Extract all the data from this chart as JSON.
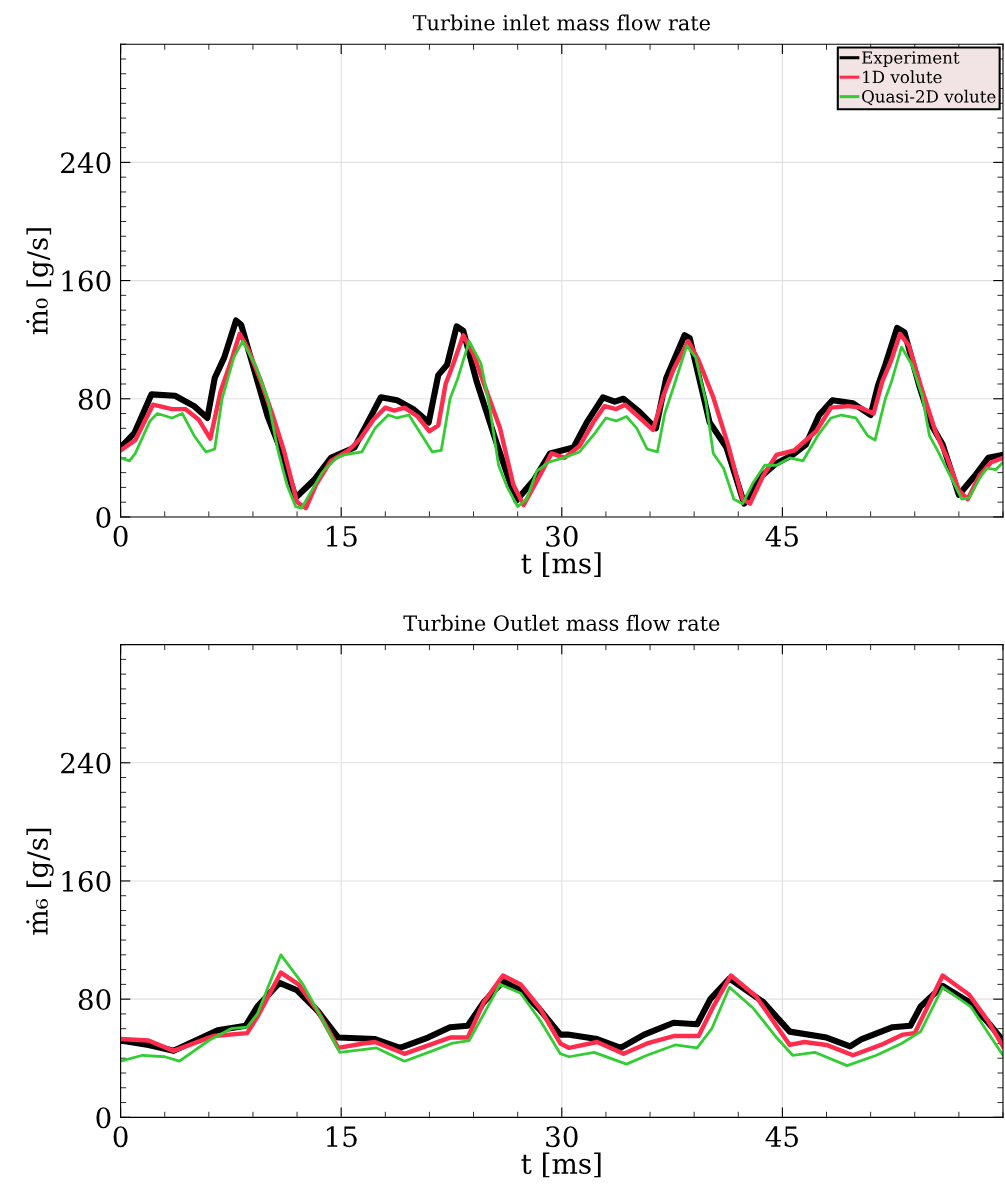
{
  "chart_data": [
    {
      "type": "line",
      "title": "Turbine inlet mass flow rate",
      "xlabel": "t [ms]",
      "ylabel": "ṁ₀ [g/s]",
      "xlim": [
        0,
        60
      ],
      "ylim": [
        0,
        320
      ],
      "xticks": [
        0,
        15,
        30,
        45
      ],
      "yticks": [
        0,
        80,
        160,
        240
      ],
      "grid": true,
      "legend": "top right",
      "line_style": "solid",
      "marker": "none",
      "series": [
        {
          "name": "Experiment",
          "color": "#000000",
          "x": [
            0,
            0.95,
            2.1,
            3.7,
            5.0,
            5.9,
            6.4,
            7.05,
            7.85,
            8.2,
            9.1,
            10.0,
            10.9,
            11.9,
            13.15,
            14.3,
            15.9,
            16.8,
            17.7,
            18.8,
            19.9,
            20.95,
            21.6,
            22.2,
            22.85,
            23.3,
            24.2,
            25.6,
            26.9,
            28.1,
            29.2,
            30.8,
            31.7,
            32.8,
            33.6,
            34.2,
            35.3,
            36.4,
            37.1,
            38.35,
            38.7,
            40.05,
            41.2,
            42.4,
            43.4,
            44.55,
            45.7,
            46.6,
            47.5,
            48.4,
            49.8,
            51.0,
            51.5,
            52.0,
            52.8,
            53.3,
            54.3,
            55.2,
            55.9,
            57.0,
            58.1,
            59.0,
            60
          ],
          "values": [
            47,
            57,
            83,
            82,
            75,
            67,
            94,
            108,
            133,
            130,
            99,
            68,
            45,
            13,
            25,
            40,
            47,
            64,
            81,
            79,
            73,
            64,
            96,
            103,
            129,
            126,
            92,
            49,
            11,
            25,
            43,
            47,
            64,
            81,
            78,
            80,
            71,
            60,
            94,
            123,
            121,
            64,
            47,
            9,
            26,
            36,
            42,
            49,
            69,
            79,
            77,
            69,
            89,
            103,
            128,
            125,
            89,
            61,
            49,
            15,
            28,
            40,
            42
          ]
        },
        {
          "name": "1D volute",
          "color": "#ff2d4d",
          "x": [
            0,
            1.0,
            2.2,
            3.5,
            4.4,
            5.3,
            6.1,
            6.8,
            7.5,
            8.1,
            8.7,
            9.5,
            10.3,
            11.1,
            12.0,
            12.6,
            13.3,
            14.3,
            15.5,
            16.3,
            17.2,
            18.0,
            18.6,
            19.3,
            20.2,
            21.0,
            21.6,
            22.1,
            22.6,
            23.3,
            24.0,
            25.0,
            25.8,
            26.7,
            27.4,
            28.4,
            29.3,
            30.2,
            31.2,
            32.2,
            32.9,
            33.7,
            34.3,
            35.2,
            36.2,
            36.9,
            37.6,
            38.6,
            39.3,
            40.3,
            41.3,
            42.3,
            42.8,
            43.7,
            44.6,
            45.8,
            47.3,
            48.3,
            49.5,
            50.3,
            51.2,
            51.8,
            52.4,
            53.0,
            53.6,
            54.4,
            55.4,
            56.2,
            57.0,
            57.6,
            58.4,
            59.2,
            60
          ],
          "values": [
            45,
            52,
            76,
            73,
            73,
            66,
            53,
            85,
            105,
            124,
            113,
            93,
            70,
            45,
            10,
            6,
            22,
            38,
            45,
            53,
            66,
            74,
            72,
            74,
            68,
            58,
            62,
            90,
            103,
            123,
            110,
            82,
            60,
            22,
            8,
            26,
            43,
            40,
            48,
            65,
            75,
            73,
            76,
            68,
            59,
            82,
            100,
            119,
            106,
            81,
            49,
            12,
            9,
            28,
            42,
            45,
            58,
            74,
            75,
            74,
            70,
            92,
            106,
            124,
            116,
            89,
            58,
            40,
            18,
            12,
            28,
            37,
            40
          ]
        },
        {
          "name": "Quasi-2D volute",
          "color": "#33cc33",
          "x": [
            0,
            0.6,
            1.0,
            2.0,
            2.5,
            3.5,
            4.2,
            5.0,
            5.8,
            6.4,
            6.9,
            7.7,
            8.3,
            9.2,
            10.0,
            10.7,
            11.3,
            11.9,
            12.3,
            13.0,
            13.7,
            14.7,
            15.2,
            16.4,
            17.3,
            18.2,
            18.8,
            19.6,
            20.5,
            21.2,
            21.8,
            22.4,
            22.9,
            23.7,
            24.5,
            25.1,
            25.7,
            26.3,
            27.0,
            27.6,
            28.3,
            29.1,
            30.1,
            31.2,
            32.2,
            33.0,
            33.7,
            34.4,
            35.1,
            35.8,
            36.5,
            37.0,
            37.6,
            38.5,
            39.1,
            39.8,
            40.3,
            41.0,
            41.7,
            42.3,
            43.0,
            43.8,
            44.6,
            45.5,
            46.4,
            47.4,
            48.3,
            49.0,
            50.0,
            50.8,
            51.3,
            52.0,
            52.4,
            53.1,
            53.8,
            54.5,
            55.0,
            55.6,
            56.3,
            57.2,
            57.7,
            58.4,
            58.9,
            59.5,
            60
          ],
          "values": [
            40,
            38,
            43,
            65,
            70,
            67,
            70,
            55,
            44,
            46,
            80,
            108,
            119,
            102,
            80,
            45,
            22,
            7,
            6,
            18,
            30,
            40,
            42,
            44,
            60,
            69,
            67,
            69,
            55,
            44,
            45,
            80,
            93,
            119,
            104,
            74,
            35,
            20,
            7,
            12,
            31,
            37,
            40,
            44,
            56,
            67,
            65,
            68,
            60,
            46,
            44,
            70,
            88,
            116,
            108,
            78,
            43,
            33,
            12,
            9,
            23,
            35,
            35,
            40,
            38,
            55,
            67,
            69,
            67,
            55,
            52,
            80,
            91,
            115,
            103,
            82,
            55,
            44,
            30,
            12,
            13,
            26,
            33,
            32,
            37
          ]
        }
      ]
    },
    {
      "type": "line",
      "title": "Turbine Outlet mass flow rate",
      "xlabel": "t [ms]",
      "ylabel": "ṁ₆ [g/s]",
      "xlim": [
        0,
        60
      ],
      "ylim": [
        0,
        320
      ],
      "xticks": [
        0,
        15,
        30,
        45
      ],
      "yticks": [
        0,
        80,
        160,
        240
      ],
      "grid": true,
      "legend": false,
      "line_style": "solid",
      "marker": "none",
      "series": [
        {
          "color": "#000000",
          "x": [
            0,
            1.9,
            3.6,
            6.6,
            8.5,
            9.3,
            10.8,
            12.0,
            13.4,
            14.8,
            17.3,
            19.0,
            20.9,
            22.4,
            23.6,
            24.7,
            26.0,
            27.2,
            28.5,
            29.9,
            30.4,
            32.4,
            34.0,
            35.6,
            37.6,
            39.2,
            40.1,
            41.4,
            43.7,
            45.5,
            48.0,
            49.6,
            50.4,
            52.5,
            53.7,
            54.4,
            55.9,
            57.7,
            59.0,
            60
          ],
          "values": [
            52,
            49,
            45,
            59,
            62,
            75,
            91,
            86,
            72,
            54,
            53,
            47,
            54,
            61,
            62,
            78,
            92,
            86,
            73,
            56,
            56,
            53,
            47,
            56,
            64,
            63,
            80,
            94,
            78,
            58,
            54,
            48,
            53,
            61,
            62,
            75,
            89,
            78,
            64,
            52
          ]
        },
        {
          "color": "#ff2d4d",
          "x": [
            0,
            1.9,
            3.6,
            6.3,
            8.6,
            9.3,
            10.9,
            12.1,
            13.4,
            14.8,
            16.5,
            17.3,
            19.3,
            21.3,
            22.4,
            23.6,
            24.7,
            26.0,
            27.2,
            28.5,
            29.9,
            30.5,
            32.4,
            34.2,
            35.8,
            37.6,
            39.3,
            40.3,
            41.5,
            43.2,
            45.5,
            46.5,
            48.0,
            49.8,
            51.7,
            53.2,
            54.0,
            55.9,
            57.7,
            59.0,
            60
          ],
          "values": [
            53,
            52,
            45,
            55,
            57,
            68,
            98,
            90,
            72,
            47,
            50,
            51,
            43,
            50,
            54,
            54,
            78,
            96,
            90,
            74,
            50,
            47,
            51,
            43,
            50,
            55,
            55,
            75,
            96,
            82,
            49,
            51,
            49,
            42,
            49,
            56,
            57,
            96,
            83,
            65,
            48
          ]
        },
        {
          "color": "#33cc33",
          "x": [
            0,
            1.5,
            3.0,
            4.0,
            6.0,
            7.5,
            8.6,
            9.3,
            10.9,
            12.4,
            13.4,
            14.9,
            16.6,
            17.4,
            19.3,
            21.2,
            22.5,
            23.7,
            24.7,
            25.8,
            27.2,
            28.5,
            29.9,
            30.5,
            32.2,
            34.4,
            35.8,
            37.7,
            39.2,
            40.2,
            41.4,
            43.0,
            44.6,
            45.7,
            47.2,
            49.4,
            51.4,
            53.1,
            54.4,
            55.9,
            57.8,
            60
          ],
          "values": [
            38,
            42,
            41,
            38,
            52,
            60,
            61,
            70,
            110,
            90,
            72,
            44,
            46,
            47,
            38,
            45,
            50,
            52,
            70,
            90,
            84,
            66,
            43,
            41,
            44,
            36,
            42,
            49,
            47,
            60,
            88,
            74,
            54,
            42,
            44,
            35,
            42,
            50,
            58,
            88,
            75,
            42
          ]
        }
      ]
    }
  ]
}
